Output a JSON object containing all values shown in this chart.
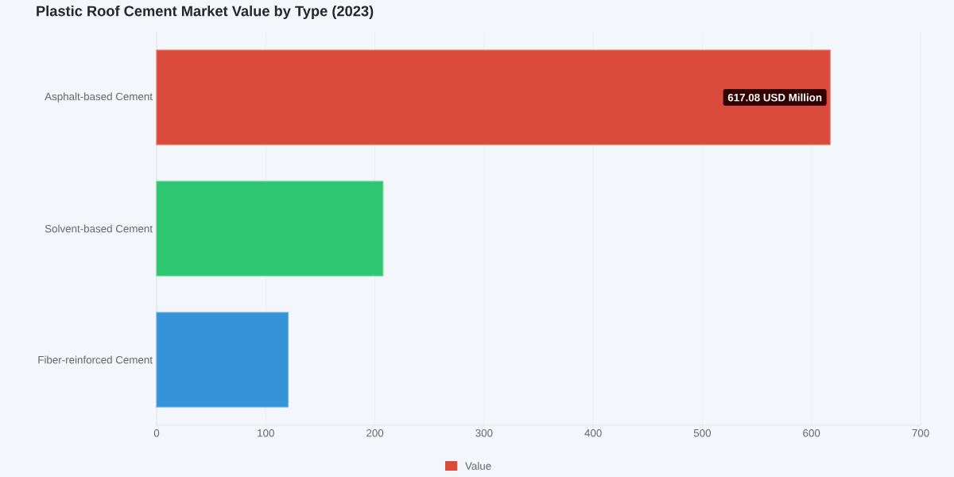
{
  "chart_data": {
    "type": "bar",
    "orientation": "horizontal",
    "title": "Plastic Roof Cement Market Value by Type (2023)",
    "categories": [
      "Asphalt-based Cement",
      "Solvent-based Cement",
      "Fiber-reinforced Cement"
    ],
    "series": [
      {
        "name": "Value",
        "colors": [
          "#db4b3c",
          "#2ec771",
          "#3594d7"
        ],
        "values": [
          617.08,
          207.4,
          120.4
        ],
        "value_labels": [
          "617.08 USD Million",
          null,
          null
        ]
      }
    ],
    "xlim": [
      0,
      700
    ],
    "xticks": [
      0,
      100,
      200,
      300,
      400,
      500,
      600,
      700
    ],
    "grid": "x",
    "legend": "bottom"
  }
}
